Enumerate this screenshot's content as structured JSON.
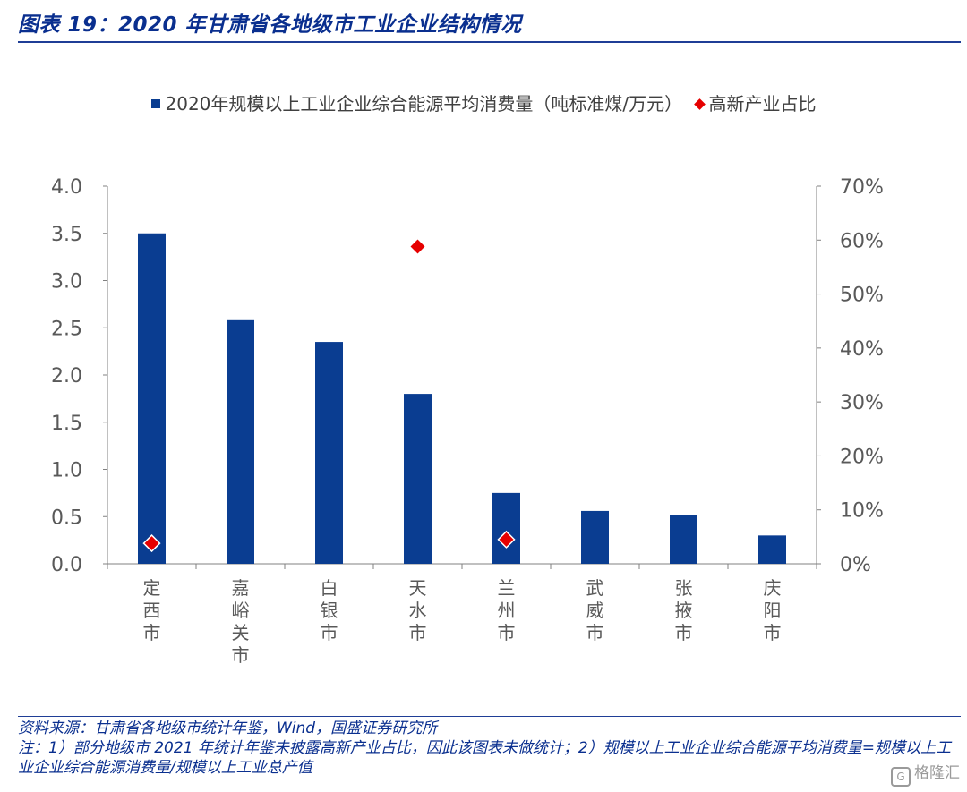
{
  "title": "图表 19：2020 年甘肃省各地级市工业企业结构情况",
  "legend": {
    "bar_label": "2020年规模以上工业企业综合能源平均消费量（吨标准煤/万元）",
    "marker_label": "高新产业占比"
  },
  "chart_data": {
    "type": "bar",
    "categories": [
      "定西市",
      "嘉峪关市",
      "白银市",
      "天水市",
      "兰州市",
      "武威市",
      "张掖市",
      "庆阳市"
    ],
    "series": [
      {
        "name": "2020年规模以上工业企业综合能源平均消费量（吨标准煤/万元）",
        "type": "bar",
        "axis": "left",
        "color": "#0a3d91",
        "values": [
          3.5,
          2.58,
          2.35,
          1.8,
          0.75,
          0.56,
          0.52,
          0.3
        ]
      },
      {
        "name": "高新产业占比",
        "type": "scatter",
        "marker": "diamond",
        "axis": "right",
        "color": "#e60000",
        "values": [
          3.8,
          null,
          null,
          58.8,
          4.5,
          null,
          null,
          null
        ]
      }
    ],
    "y_left": {
      "min": 0,
      "max": 4.0,
      "step": 0.5,
      "ticks": [
        "0.0",
        "0.5",
        "1.0",
        "1.5",
        "2.0",
        "2.5",
        "3.0",
        "3.5",
        "4.0"
      ]
    },
    "y_right": {
      "min": 0,
      "max": 70,
      "step": 10,
      "ticks": [
        "0%",
        "10%",
        "20%",
        "30%",
        "40%",
        "50%",
        "60%",
        "70%"
      ]
    },
    "grid": false,
    "legend_position": "top-center"
  },
  "footer": {
    "source": "资料来源：甘肃省各地级市统计年鉴，Wind，国盛证券研究所",
    "note": "注：1）部分地级市 2021 年统计年鉴未披露高新产业占比，因此该图表未做统计；2）规模以上工业企业综合能源平均消费量=规模以上工业企业综合能源消费量/规模以上工业总产值"
  },
  "watermark": {
    "text": "格隆汇",
    "icon": "logo-icon"
  }
}
